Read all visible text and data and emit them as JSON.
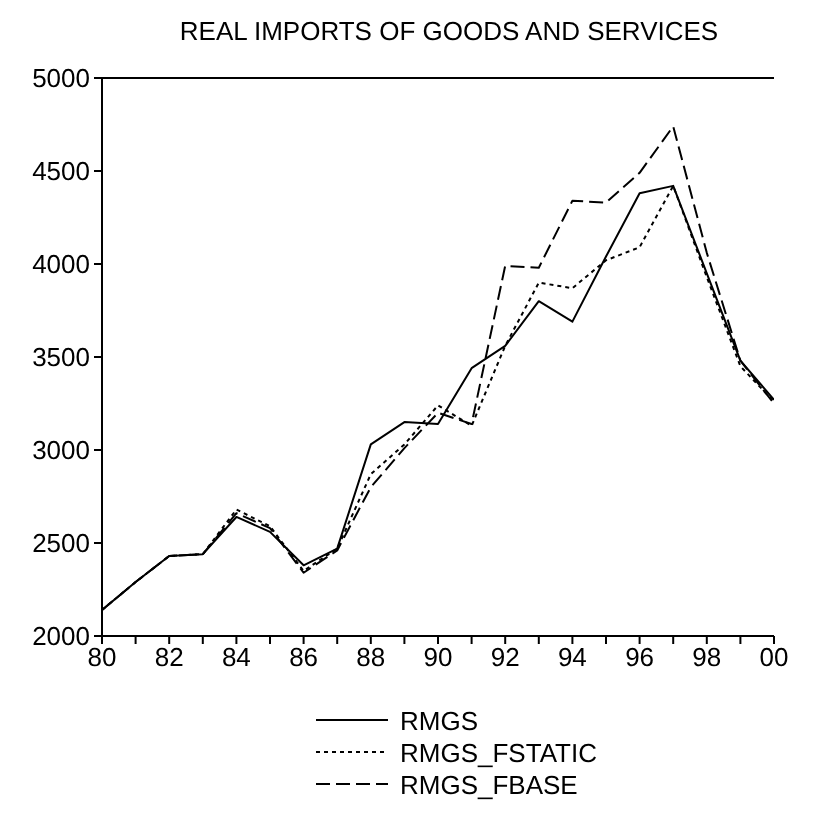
{
  "chart_data": {
    "type": "line",
    "title": "REAL IMPORTS OF GOODS AND SERVICES",
    "x": [
      1980,
      1981,
      1982,
      1983,
      1984,
      1985,
      1986,
      1987,
      1988,
      1989,
      1990,
      1991,
      1992,
      1993,
      1994,
      1995,
      1996,
      1997,
      1998,
      1999,
      2000
    ],
    "series": [
      {
        "name": "RMGS",
        "color": "#000000",
        "line_style": "solid",
        "values": [
          2140,
          2290,
          2430,
          2440,
          2640,
          2560,
          2380,
          2470,
          3030,
          3150,
          3140,
          3440,
          3560,
          3800,
          3690,
          4040,
          4380,
          4420,
          3950,
          3480,
          3270
        ]
      },
      {
        "name": "RMGS_FSTATIC",
        "color": "#000000",
        "line_style": "dotted",
        "values": [
          2140,
          2290,
          2430,
          2440,
          2680,
          2590,
          2350,
          2470,
          2870,
          3030,
          3240,
          3130,
          3560,
          3900,
          3870,
          4020,
          4090,
          4420,
          3930,
          3450,
          3260
        ]
      },
      {
        "name": "RMGS_FBASE",
        "color": "#000000",
        "line_style": "dashed",
        "values": [
          2140,
          2290,
          2430,
          2440,
          2660,
          2580,
          2340,
          2460,
          2800,
          3010,
          3200,
          3140,
          3990,
          3980,
          4340,
          4330,
          4490,
          4740,
          4060,
          3480,
          3250
        ]
      }
    ],
    "xlim": [
      1980,
      2000
    ],
    "xticks": [
      {
        "value": 1980,
        "label": "80"
      },
      {
        "value": 1981,
        "label": null
      },
      {
        "value": 1982,
        "label": "82"
      },
      {
        "value": 1983,
        "label": null
      },
      {
        "value": 1984,
        "label": "84"
      },
      {
        "value": 1985,
        "label": null
      },
      {
        "value": 1986,
        "label": "86"
      },
      {
        "value": 1987,
        "label": null
      },
      {
        "value": 1988,
        "label": "88"
      },
      {
        "value": 1989,
        "label": null
      },
      {
        "value": 1990,
        "label": "90"
      },
      {
        "value": 1991,
        "label": null
      },
      {
        "value": 1992,
        "label": "92"
      },
      {
        "value": 1993,
        "label": null
      },
      {
        "value": 1994,
        "label": "94"
      },
      {
        "value": 1995,
        "label": null
      },
      {
        "value": 1996,
        "label": "96"
      },
      {
        "value": 1997,
        "label": null
      },
      {
        "value": 1998,
        "label": "98"
      },
      {
        "value": 1999,
        "label": null
      },
      {
        "value": 2000,
        "label": "00"
      }
    ],
    "ylim": [
      2000,
      5000
    ],
    "yticks": [
      2000,
      2500,
      3000,
      3500,
      4000,
      4500,
      5000
    ],
    "legend": "bottom",
    "marker": "none"
  }
}
